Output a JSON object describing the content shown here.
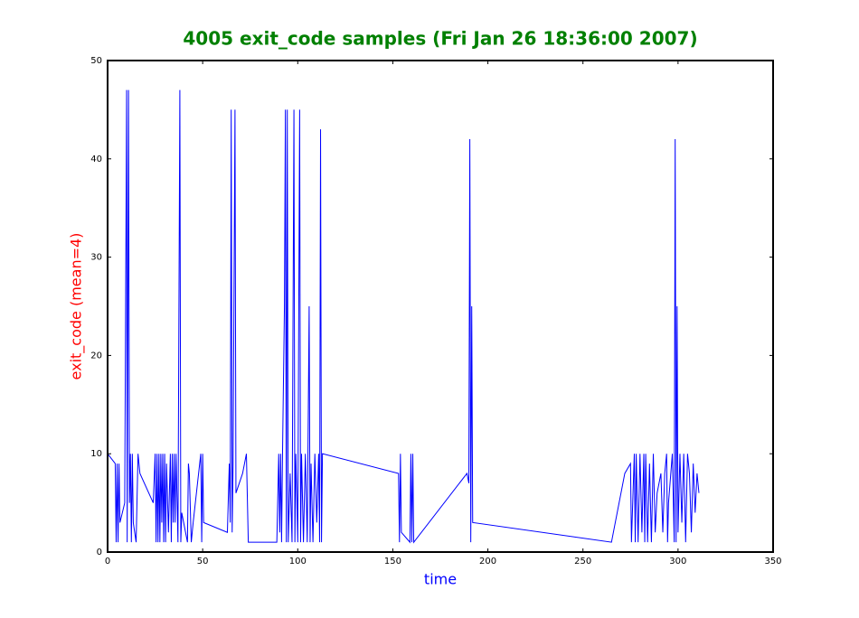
{
  "chart_data": {
    "type": "line",
    "title": "4005 exit_code samples (Fri Jan 26 18:36:00 2007)",
    "xlabel": "time",
    "ylabel": "exit_code (mean=4)",
    "xlim": [
      0,
      350
    ],
    "ylim": [
      0,
      50
    ],
    "xticks": [
      0,
      50,
      100,
      150,
      200,
      250,
      300,
      350
    ],
    "yticks": [
      0,
      10,
      20,
      30,
      40,
      50
    ],
    "series": [
      {
        "color": "#0000ff",
        "x": [
          0,
          4,
          4.5,
          5,
          5.5,
          6,
          6.5,
          9,
          10,
          10.3,
          11,
          11.5,
          12,
          12.5,
          13,
          13.5,
          15,
          16,
          17,
          24,
          25,
          25.5,
          26,
          26.5,
          27,
          27.5,
          28,
          28.5,
          29,
          29.5,
          30,
          30.5,
          31,
          32,
          33,
          33.5,
          34,
          34.5,
          35,
          35.5,
          36,
          37,
          38,
          38.5,
          39,
          42,
          42.5,
          43,
          44,
          45,
          49,
          49.5,
          50,
          50.5,
          63,
          64,
          64.5,
          65,
          65.5,
          66,
          67,
          67.5,
          71,
          73,
          74,
          89,
          90,
          90.5,
          91,
          91.5,
          92,
          93,
          93.5,
          94,
          94.5,
          95,
          96,
          97,
          98,
          98.5,
          99,
          100,
          101,
          101.5,
          102,
          103,
          104,
          105,
          106,
          106.5,
          107,
          108,
          109,
          110,
          111,
          111.5,
          112,
          112.5,
          113,
          153,
          153.5,
          154,
          154.5,
          159,
          159.5,
          160,
          160.5,
          161,
          189,
          190,
          190.5,
          191,
          191.5,
          192,
          265,
          272,
          275,
          275.5,
          277,
          277.5,
          278,
          279,
          280,
          281,
          282,
          282.5,
          283,
          284,
          285,
          286,
          287,
          288,
          289,
          291,
          292,
          293,
          294,
          294.5,
          295,
          297,
          298,
          298.5,
          299,
          299.5,
          300,
          301,
          302,
          303,
          304,
          305,
          306,
          307,
          308,
          309,
          310,
          311
        ],
        "values": [
          10,
          9,
          1,
          9,
          1,
          9,
          3,
          5,
          47,
          1,
          47,
          5,
          10,
          1,
          10,
          3,
          1,
          10,
          8,
          5,
          10,
          1,
          10,
          1,
          10,
          1,
          10,
          3,
          10,
          1,
          10,
          1,
          9,
          2,
          10,
          1,
          10,
          3,
          10,
          3,
          10,
          1,
          47,
          1,
          4,
          1,
          9,
          8,
          1,
          3,
          10,
          1,
          10,
          3,
          2,
          9,
          3,
          45,
          2,
          9,
          45,
          6,
          8,
          10,
          1,
          1,
          10,
          2,
          10,
          1,
          10,
          25,
          45,
          1,
          45,
          1,
          8,
          1,
          45,
          1,
          10,
          1,
          45,
          1,
          10,
          1,
          10,
          1,
          25,
          1,
          9,
          1,
          10,
          3,
          10,
          1,
          43,
          1,
          10,
          8,
          1,
          10,
          2,
          1,
          10,
          1,
          10,
          1,
          8,
          7,
          42,
          1,
          25,
          3,
          1,
          8,
          9,
          1,
          10,
          1,
          10,
          1,
          10,
          2,
          10,
          1,
          10,
          1,
          9,
          1,
          10,
          2,
          6,
          8,
          2,
          8,
          10,
          1,
          5,
          10,
          1,
          42,
          1,
          25,
          2,
          10,
          3,
          10,
          1,
          10,
          8,
          2,
          9,
          4,
          8,
          6
        ]
      }
    ]
  }
}
